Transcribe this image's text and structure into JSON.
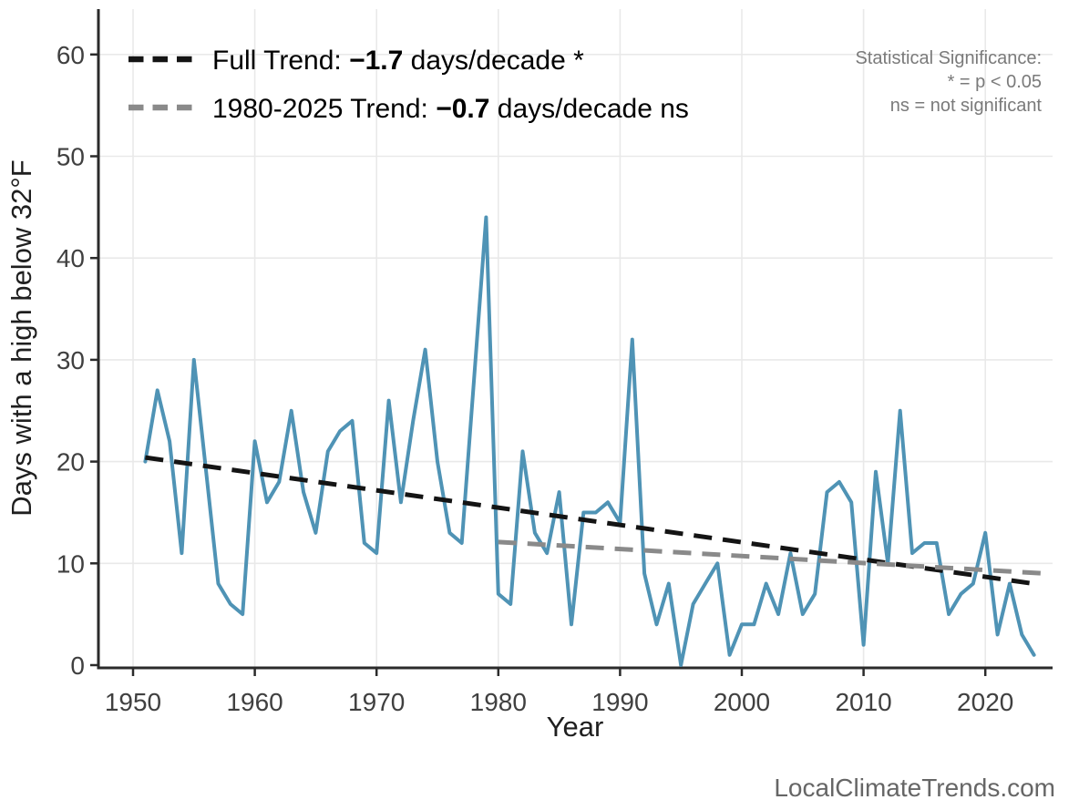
{
  "chart_data": {
    "type": "line",
    "title": "",
    "xlabel": "Year",
    "ylabel": "Days with a high below 32°F",
    "x_ticks": [
      1950,
      1960,
      1970,
      1980,
      1990,
      2000,
      2010,
      2020
    ],
    "y_ticks": [
      0,
      10,
      20,
      30,
      40,
      50,
      60
    ],
    "xlim": [
      1947.2,
      2025.5
    ],
    "ylim": [
      0,
      64.5
    ],
    "grid": true,
    "legend_position": "top-left",
    "series": [
      {
        "name": "Days with a high below 32°F",
        "color": "#4f93b5",
        "x": [
          1951,
          1952,
          1953,
          1954,
          1955,
          1956,
          1957,
          1958,
          1959,
          1960,
          1961,
          1962,
          1963,
          1964,
          1965,
          1966,
          1967,
          1968,
          1969,
          1970,
          1971,
          1972,
          1973,
          1974,
          1975,
          1976,
          1977,
          1978,
          1979,
          1980,
          1981,
          1982,
          1983,
          1984,
          1985,
          1986,
          1987,
          1988,
          1989,
          1990,
          1991,
          1992,
          1993,
          1994,
          1995,
          1996,
          1997,
          1998,
          1999,
          2000,
          2001,
          2002,
          2003,
          2004,
          2005,
          2006,
          2007,
          2008,
          2009,
          2010,
          2011,
          2012,
          2013,
          2014,
          2015,
          2016,
          2017,
          2018,
          2019,
          2020,
          2021,
          2022,
          2023,
          2024
        ],
        "values": [
          20,
          27,
          22,
          11,
          30,
          19,
          8,
          6,
          5,
          22,
          16,
          18,
          25,
          17,
          13,
          21,
          23,
          24,
          12,
          11,
          26,
          16,
          24,
          31,
          20,
          13,
          12,
          28,
          44,
          7,
          6,
          21,
          13,
          11,
          17,
          4,
          15,
          15,
          16,
          14,
          32,
          9,
          4,
          8,
          0,
          6,
          8,
          10,
          1,
          4,
          4,
          8,
          5,
          11,
          5,
          7,
          17,
          18,
          16,
          2,
          19,
          10,
          25,
          11,
          12,
          12,
          5,
          7,
          8,
          13,
          3,
          8,
          3,
          1
        ]
      }
    ],
    "trends": [
      {
        "name": "Full Trend",
        "label_prefix": "Full Trend: ",
        "label_value": "−1.7",
        "label_suffix": " days/decade *",
        "color": "#141414",
        "x1": 1951,
        "y1": 20.4,
        "x2": 2024,
        "y2": 8.0
      },
      {
        "name": "1980-2025 Trend",
        "label_prefix": "1980-2025 Trend: ",
        "label_value": "−0.7",
        "label_suffix": " days/decade ns",
        "color": "#8a8a8a",
        "x1": 1980,
        "y1": 12.1,
        "x2": 2025,
        "y2": 9.0
      }
    ]
  },
  "annotations": {
    "stat_line1": "Statistical Significance:",
    "stat_line2": "* = p < 0.05",
    "stat_line3": "ns = not significant"
  },
  "footer": {
    "brand": "LocalClimateTrends.com"
  },
  "colors": {
    "series_blue": "#4f93b5",
    "trend_black": "#141414",
    "trend_gray": "#8a8a8a",
    "gridline": "#e9e9e9",
    "axis": "#2b2b2b",
    "stat_text": "#7a7a7a",
    "footer_text": "#666666"
  }
}
